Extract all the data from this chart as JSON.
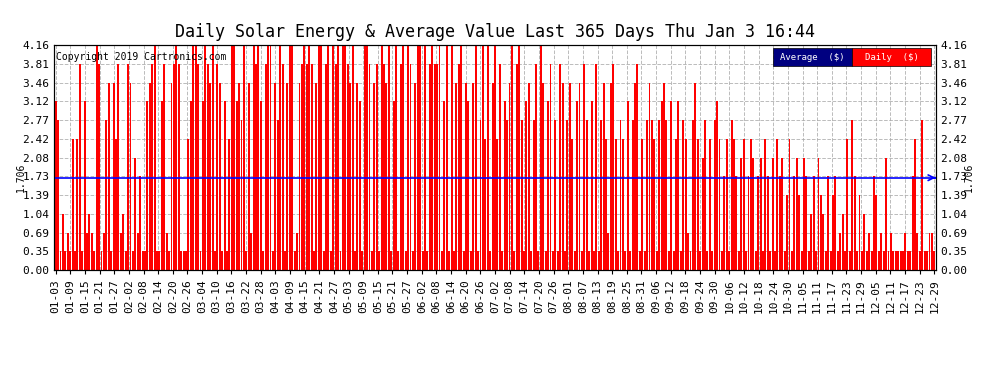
{
  "title": "Daily Solar Energy & Average Value Last 365 Days Thu Jan 3 16:44",
  "copyright": "Copyright 2019 Cartronics.com",
  "average_value": 1.706,
  "ylim": [
    0.0,
    4.16
  ],
  "yticks": [
    0.0,
    0.35,
    0.69,
    1.04,
    1.39,
    1.73,
    2.08,
    2.42,
    2.77,
    3.12,
    3.46,
    3.81,
    4.16
  ],
  "bar_color": "#FF0000",
  "average_line_color": "#0000FF",
  "background_color": "#FFFFFF",
  "grid_color": "#AAAAAA",
  "legend_avg_bg": "#000080",
  "legend_daily_bg": "#FF0000",
  "legend_text_color": "#FFFFFF",
  "title_fontsize": 12,
  "tick_fontsize": 8,
  "xlabel_rotation": 90,
  "xtick_labels": [
    "01-03",
    "01-09",
    "01-15",
    "01-21",
    "01-27",
    "02-02",
    "02-08",
    "02-14",
    "02-20",
    "02-26",
    "03-04",
    "03-10",
    "03-16",
    "03-22",
    "03-28",
    "04-03",
    "04-09",
    "04-15",
    "04-21",
    "04-27",
    "05-03",
    "05-09",
    "05-15",
    "05-21",
    "05-27",
    "06-02",
    "06-08",
    "06-14",
    "06-20",
    "06-26",
    "07-02",
    "07-08",
    "07-14",
    "07-20",
    "07-26",
    "08-01",
    "08-07",
    "08-13",
    "08-19",
    "08-25",
    "08-31",
    "09-06",
    "09-12",
    "09-18",
    "09-24",
    "09-30",
    "10-06",
    "10-12",
    "10-18",
    "10-24",
    "10-30",
    "11-05",
    "11-11",
    "11-17",
    "11-23",
    "11-29",
    "12-05",
    "12-11",
    "12-17",
    "12-23",
    "12-29"
  ],
  "bar_data": [
    3.12,
    2.77,
    0.35,
    1.04,
    0.35,
    0.69,
    0.35,
    2.42,
    0.35,
    2.42,
    3.81,
    0.35,
    3.12,
    0.69,
    1.04,
    0.69,
    0.35,
    4.16,
    3.81,
    0.35,
    0.69,
    2.77,
    3.46,
    0.35,
    3.46,
    2.42,
    3.81,
    0.69,
    1.04,
    0.35,
    3.81,
    3.46,
    0.35,
    2.08,
    0.69,
    1.73,
    0.35,
    0.35,
    3.12,
    3.46,
    3.81,
    4.16,
    0.35,
    0.35,
    3.12,
    3.81,
    0.69,
    0.35,
    3.46,
    3.81,
    4.16,
    3.81,
    0.35,
    0.35,
    0.35,
    2.42,
    3.12,
    4.16,
    4.16,
    3.81,
    0.35,
    3.12,
    4.16,
    3.81,
    3.46,
    4.16,
    0.35,
    3.81,
    3.46,
    0.35,
    3.12,
    0.35,
    2.42,
    4.16,
    4.16,
    3.12,
    3.46,
    2.77,
    4.16,
    0.35,
    3.46,
    0.69,
    4.16,
    3.81,
    4.16,
    3.12,
    0.35,
    3.81,
    4.16,
    4.16,
    0.35,
    3.46,
    2.77,
    4.16,
    3.81,
    0.35,
    3.46,
    4.16,
    4.16,
    0.35,
    0.69,
    3.46,
    3.81,
    4.16,
    3.81,
    4.16,
    3.81,
    0.35,
    3.46,
    4.16,
    4.16,
    0.35,
    3.81,
    4.16,
    0.35,
    4.16,
    3.81,
    4.16,
    0.35,
    4.16,
    4.16,
    3.81,
    3.46,
    4.16,
    0.35,
    3.46,
    3.12,
    0.35,
    4.16,
    4.16,
    3.81,
    0.35,
    3.46,
    3.81,
    0.35,
    4.16,
    3.81,
    3.46,
    4.16,
    0.35,
    3.12,
    4.16,
    0.35,
    3.81,
    4.16,
    0.35,
    4.16,
    3.81,
    0.35,
    3.46,
    4.16,
    4.16,
    0.35,
    4.16,
    0.35,
    3.81,
    4.16,
    3.81,
    3.81,
    4.16,
    0.35,
    3.12,
    4.16,
    0.35,
    4.16,
    0.35,
    3.46,
    3.81,
    4.16,
    0.35,
    3.46,
    3.12,
    0.35,
    3.46,
    4.16,
    0.35,
    2.77,
    4.16,
    2.42,
    4.16,
    0.35,
    3.46,
    4.16,
    2.42,
    3.81,
    0.35,
    3.12,
    2.77,
    3.46,
    4.16,
    0.35,
    3.81,
    4.16,
    2.77,
    0.35,
    3.12,
    3.46,
    0.35,
    2.77,
    3.81,
    0.35,
    4.16,
    3.46,
    0.35,
    3.12,
    3.81,
    0.35,
    2.77,
    0.35,
    3.81,
    3.46,
    0.35,
    2.77,
    3.46,
    2.42,
    0.35,
    3.12,
    3.46,
    0.35,
    3.81,
    2.77,
    0.35,
    3.12,
    0.35,
    3.81,
    0.35,
    2.77,
    3.46,
    2.42,
    0.69,
    3.46,
    3.81,
    2.42,
    0.35,
    2.77,
    2.42,
    0.35,
    3.12,
    0.35,
    2.77,
    3.46,
    3.81,
    0.35,
    2.42,
    0.35,
    2.77,
    3.46,
    2.77,
    2.42,
    0.35,
    2.77,
    3.12,
    3.46,
    2.77,
    0.35,
    3.12,
    0.35,
    2.42,
    3.12,
    0.35,
    2.77,
    2.42,
    0.69,
    0.35,
    2.77,
    3.46,
    2.42,
    0.35,
    2.08,
    2.77,
    0.35,
    2.42,
    0.35,
    2.77,
    3.12,
    2.42,
    0.35,
    1.73,
    2.42,
    0.35,
    2.77,
    2.42,
    1.73,
    0.35,
    2.08,
    2.42,
    0.35,
    1.73,
    2.42,
    2.08,
    0.35,
    1.73,
    2.08,
    0.35,
    2.42,
    1.73,
    0.35,
    2.08,
    0.35,
    2.42,
    1.73,
    2.08,
    0.35,
    1.39,
    2.42,
    0.35,
    1.73,
    2.08,
    1.39,
    0.35,
    2.08,
    1.73,
    0.35,
    1.04,
    1.73,
    0.35,
    2.08,
    1.39,
    1.04,
    0.35,
    1.73,
    0.35,
    1.39,
    1.73,
    0.35,
    0.69,
    1.04,
    0.35,
    2.42,
    0.35,
    2.77,
    1.73,
    0.35,
    1.39,
    0.35,
    1.04,
    0.35,
    0.69,
    0.35,
    1.73,
    1.39,
    0.35,
    0.69,
    0.35,
    2.08,
    0.35,
    0.69,
    0.35,
    0.35,
    0.35,
    0.35,
    0.35,
    0.69,
    0.35,
    0.35,
    1.73,
    2.42,
    0.69,
    0.35,
    2.77,
    0.35,
    0.35,
    0.69,
    0.69,
    0.35
  ]
}
